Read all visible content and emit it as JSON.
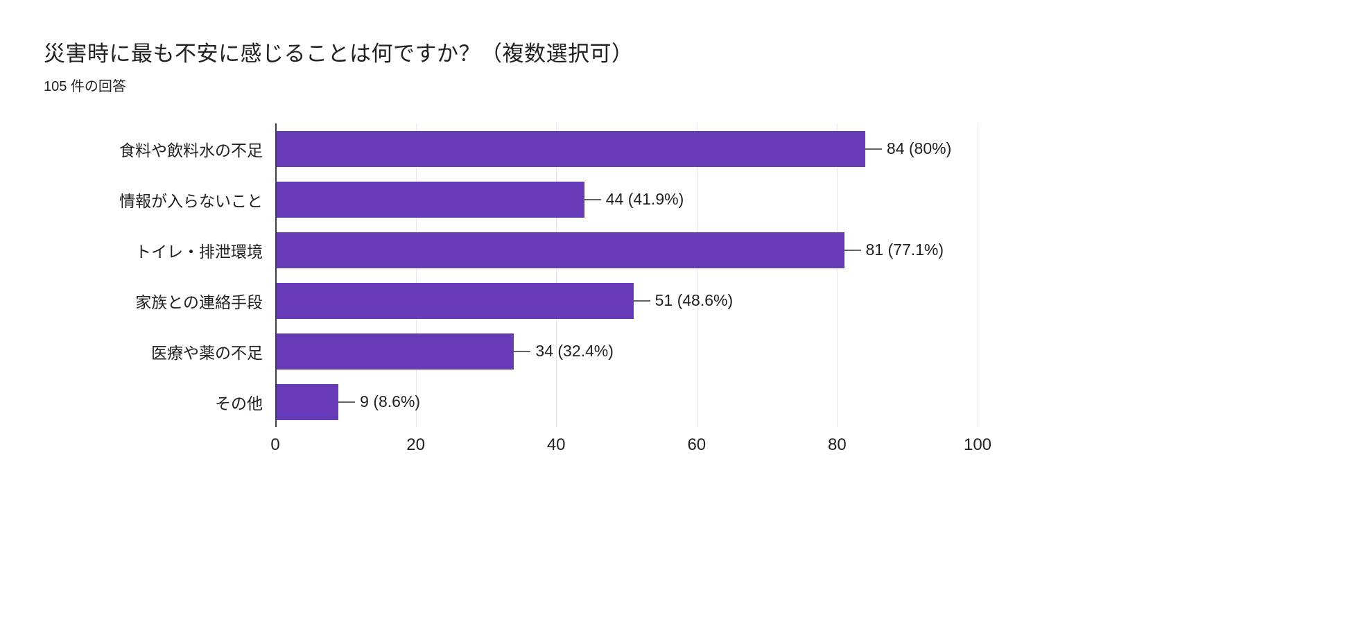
{
  "chart_data": {
    "type": "bar",
    "orientation": "horizontal",
    "title": "災害時に最も不安に感じることは何ですか？（複数選択可）",
    "subtitle": "105 件の回答",
    "categories": [
      "食料や飲料水の不足",
      "情報が入らないこと",
      "トイレ・排泄環境",
      "家族との連絡手段",
      "医療や薬の不足",
      "その他"
    ],
    "values": [
      84,
      44,
      81,
      51,
      34,
      9
    ],
    "value_labels": [
      "84 (80%)",
      "44 (41.9%)",
      "81 (77.1%)",
      "51 (48.6%)",
      "34 (32.4%)",
      "9 (8.6%)"
    ],
    "xlim": [
      0,
      100
    ],
    "ticks": [
      0,
      20,
      40,
      60,
      80,
      100
    ],
    "bar_color": "#673ab7",
    "gridline_color": "#e8e8e8",
    "grid": true,
    "legend": false,
    "xlabel": "",
    "ylabel": ""
  }
}
